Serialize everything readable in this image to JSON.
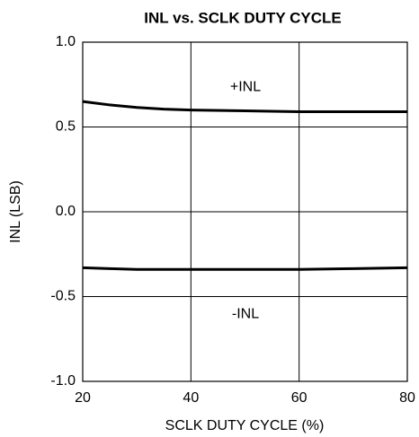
{
  "chart_data": {
    "type": "line",
    "title": "INL vs. SCLK DUTY CYCLE",
    "xlabel": "SCLK DUTY CYCLE (%)",
    "ylabel": "INL (LSB)",
    "x": [
      20,
      25,
      30,
      35,
      40,
      50,
      60,
      70,
      80
    ],
    "series": [
      {
        "name": "+INL",
        "color": "#000000",
        "values": [
          0.65,
          0.63,
          0.615,
          0.605,
          0.6,
          0.595,
          0.59,
          0.59,
          0.59
        ]
      },
      {
        "name": "-INL",
        "color": "#000000",
        "values": [
          -0.33,
          -0.335,
          -0.34,
          -0.34,
          -0.34,
          -0.34,
          -0.34,
          -0.335,
          -0.33
        ]
      }
    ],
    "xlim": [
      20,
      80
    ],
    "xticks": [
      20,
      40,
      60,
      80
    ],
    "ylim": [
      -1,
      1
    ],
    "yticks": [
      {
        "value": -1,
        "label": "-1.0"
      },
      -0.5,
      {
        "value": 0,
        "label": "0.0"
      },
      0.5,
      {
        "value": 1,
        "label": "1.0"
      }
    ],
    "grid": true
  }
}
